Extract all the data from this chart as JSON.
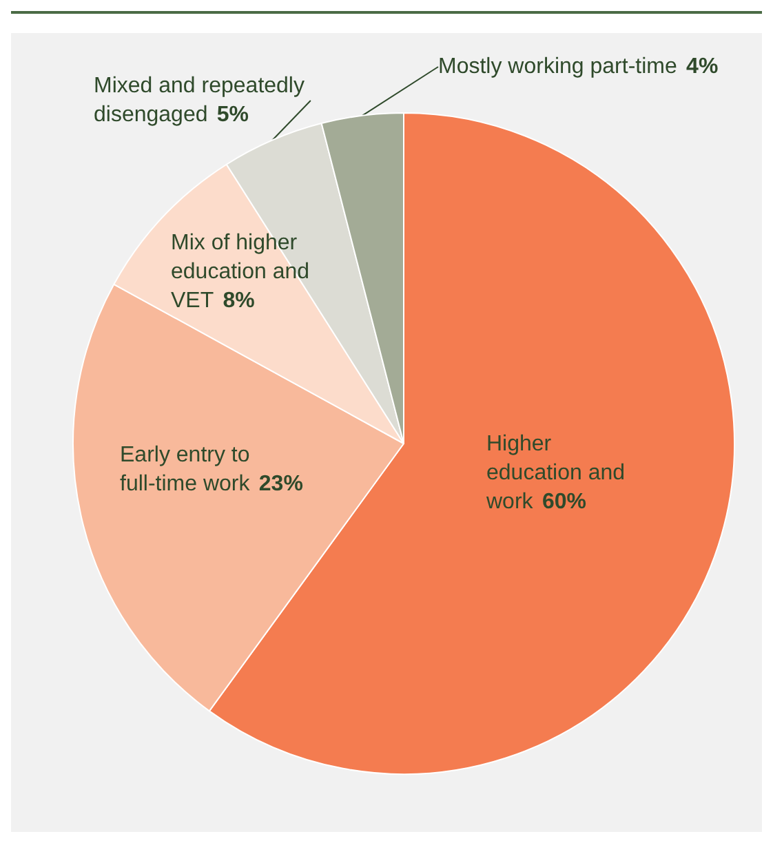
{
  "chart_data": {
    "type": "pie",
    "categories": [
      "Higher education and work",
      "Early entry to full-time work",
      "Mix of higher education and VET",
      "Mixed and repeatedly disengaged",
      "Mostly working part-time"
    ],
    "values": [
      60,
      23,
      8,
      5,
      4
    ],
    "value_labels": [
      "60%",
      "23%",
      "8%",
      "5%",
      "4%"
    ],
    "colors": [
      "#f47c50",
      "#f8b99b",
      "#fcdccb",
      "#dcdcd4",
      "#a3ab96"
    ]
  }
}
